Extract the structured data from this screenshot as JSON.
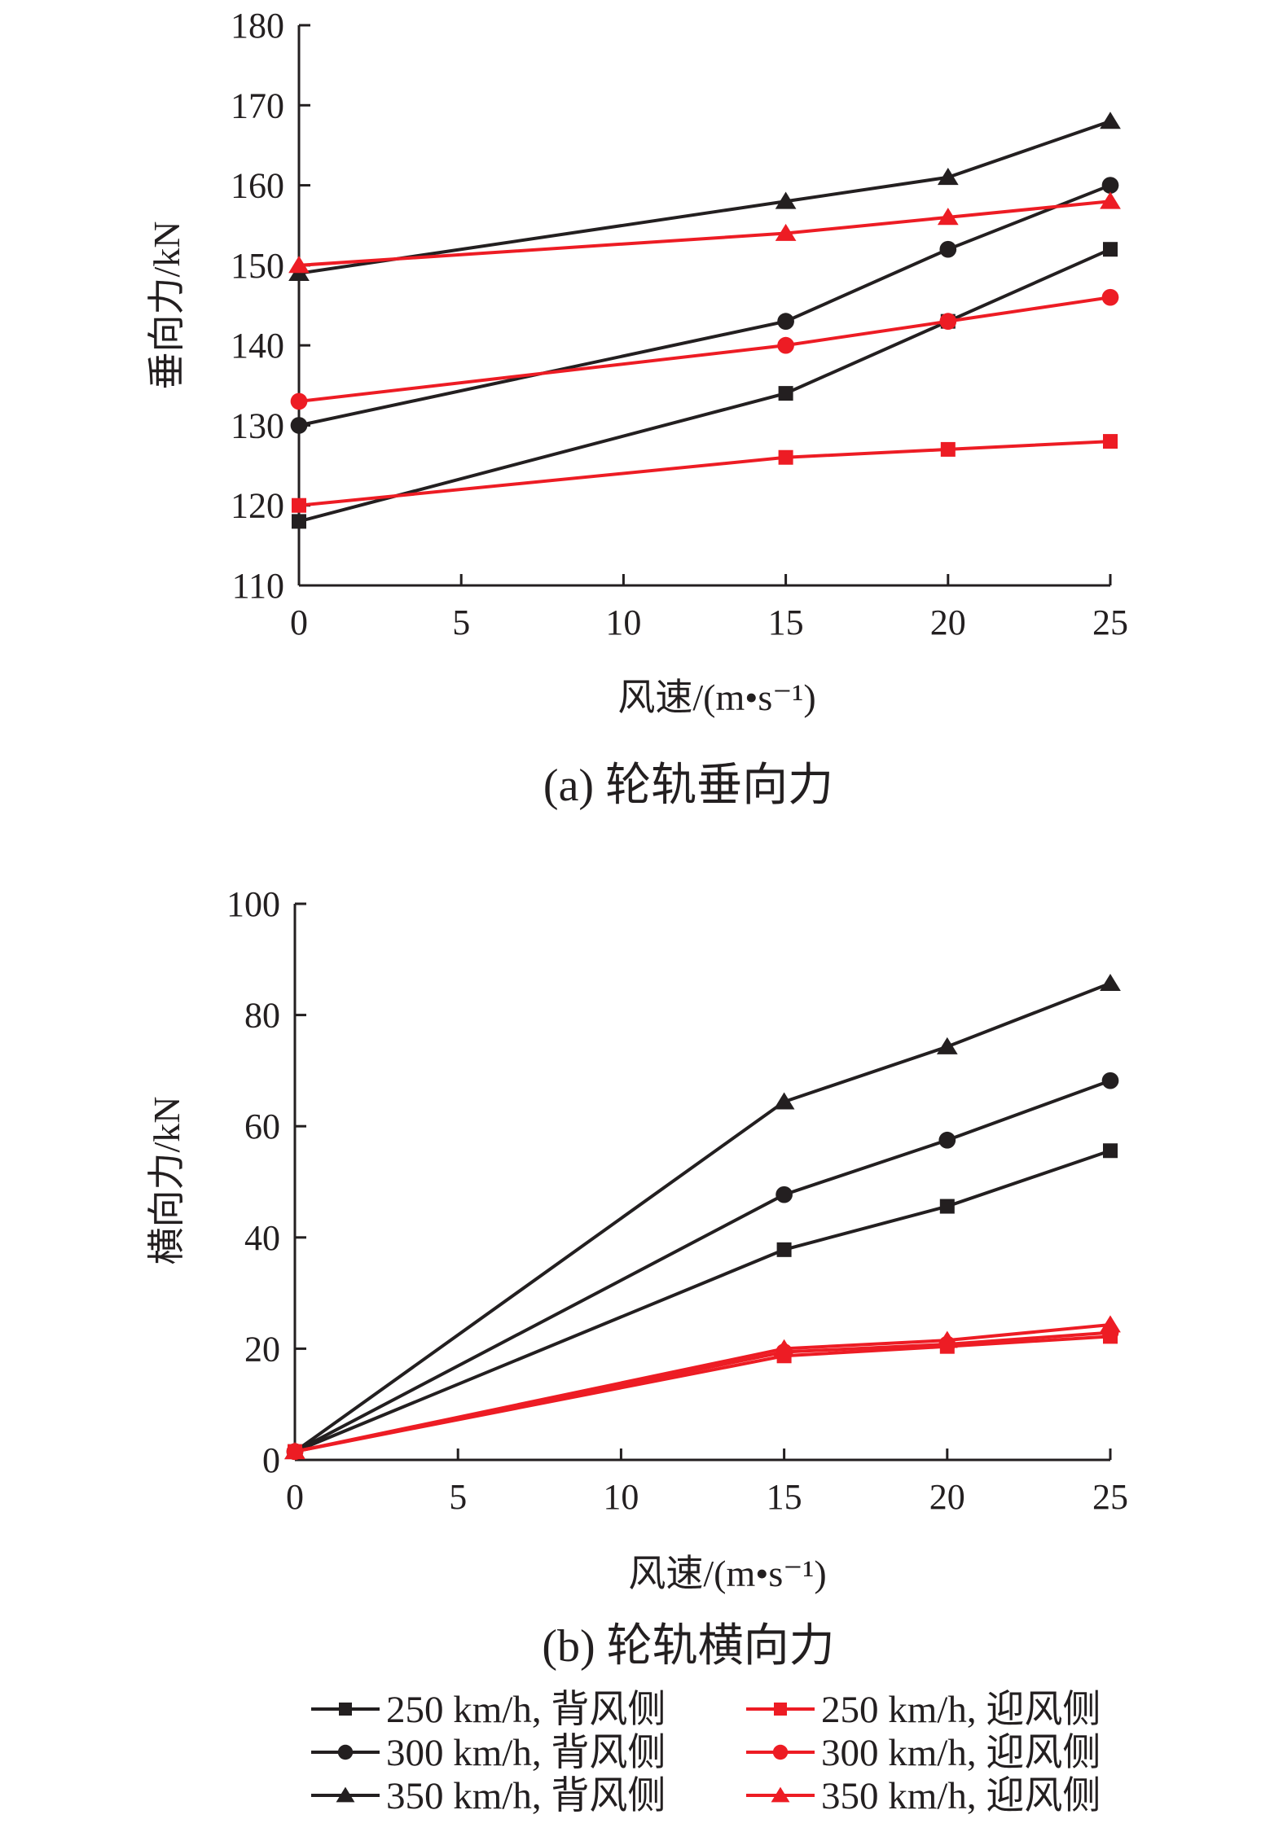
{
  "chart_data": [
    {
      "type": "line",
      "caption": "(a) 轮轨垂向力",
      "xlabel": "风速/(m•s⁻¹)",
      "ylabel": "垂向力/kN",
      "xlim": [
        0,
        25
      ],
      "ylim": [
        110,
        180
      ],
      "xticks": [
        0,
        5,
        10,
        15,
        20,
        25
      ],
      "yticks": [
        110,
        120,
        130,
        140,
        150,
        160,
        170,
        180
      ],
      "x": [
        0,
        15,
        20,
        25
      ],
      "series": [
        {
          "name": "250 km/h, 背风侧",
          "color": "#231f20",
          "marker": "square",
          "values": [
            118,
            134,
            143,
            152
          ]
        },
        {
          "name": "300 km/h, 背风侧",
          "color": "#231f20",
          "marker": "circle",
          "values": [
            130,
            143,
            152,
            160
          ]
        },
        {
          "name": "350 km/h, 背风侧",
          "color": "#231f20",
          "marker": "triangle",
          "values": [
            149,
            158,
            161,
            168
          ]
        },
        {
          "name": "250 km/h, 迎风侧",
          "color": "#ed1c24",
          "marker": "square",
          "values": [
            120,
            126,
            127,
            128
          ]
        },
        {
          "name": "300 km/h, 迎风侧",
          "color": "#ed1c24",
          "marker": "circle",
          "values": [
            133,
            140,
            143,
            146
          ]
        },
        {
          "name": "350 km/h, 迎风侧",
          "color": "#ed1c24",
          "marker": "triangle",
          "values": [
            150,
            154,
            156,
            158
          ]
        }
      ]
    },
    {
      "type": "line",
      "caption": "(b) 轮轨横向力",
      "xlabel": "风速/(m•s⁻¹)",
      "ylabel": "横向力/kN",
      "xlim": [
        0,
        25
      ],
      "ylim": [
        0,
        100
      ],
      "xticks": [
        0,
        5,
        10,
        15,
        20,
        25
      ],
      "yticks": [
        0,
        20,
        40,
        60,
        80,
        100
      ],
      "x": [
        0,
        15,
        20,
        25
      ],
      "series": [
        {
          "name": "250 km/h, 背风侧",
          "color": "#231f20",
          "marker": "square",
          "values": [
            1.5,
            37.8,
            45.6,
            55.6
          ]
        },
        {
          "name": "300 km/h, 背风侧",
          "color": "#231f20",
          "marker": "circle",
          "values": [
            1.5,
            47.7,
            57.5,
            68.2
          ]
        },
        {
          "name": "350 km/h, 背风侧",
          "color": "#231f20",
          "marker": "triangle",
          "values": [
            1.5,
            64.4,
            74.3,
            85.7
          ]
        },
        {
          "name": "250 km/h, 迎风侧",
          "color": "#ed1c24",
          "marker": "square",
          "values": [
            1.5,
            18.7,
            20.4,
            22.2
          ]
        },
        {
          "name": "300 km/h, 迎风侧",
          "color": "#ed1c24",
          "marker": "circle",
          "values": [
            1.5,
            19.4,
            20.8,
            22.9
          ]
        },
        {
          "name": "350 km/h, 迎风侧",
          "color": "#ed1c24",
          "marker": "triangle",
          "values": [
            1.5,
            20.0,
            21.5,
            24.3
          ]
        }
      ]
    }
  ],
  "legend": {
    "placement": "bottom",
    "items": [
      "250 km/h, 背风侧",
      "300 km/h, 背风侧",
      "350 km/h, 背风侧",
      "250 km/h, 迎风侧",
      "300 km/h, 迎风侧",
      "350 km/h, 迎风侧"
    ]
  }
}
